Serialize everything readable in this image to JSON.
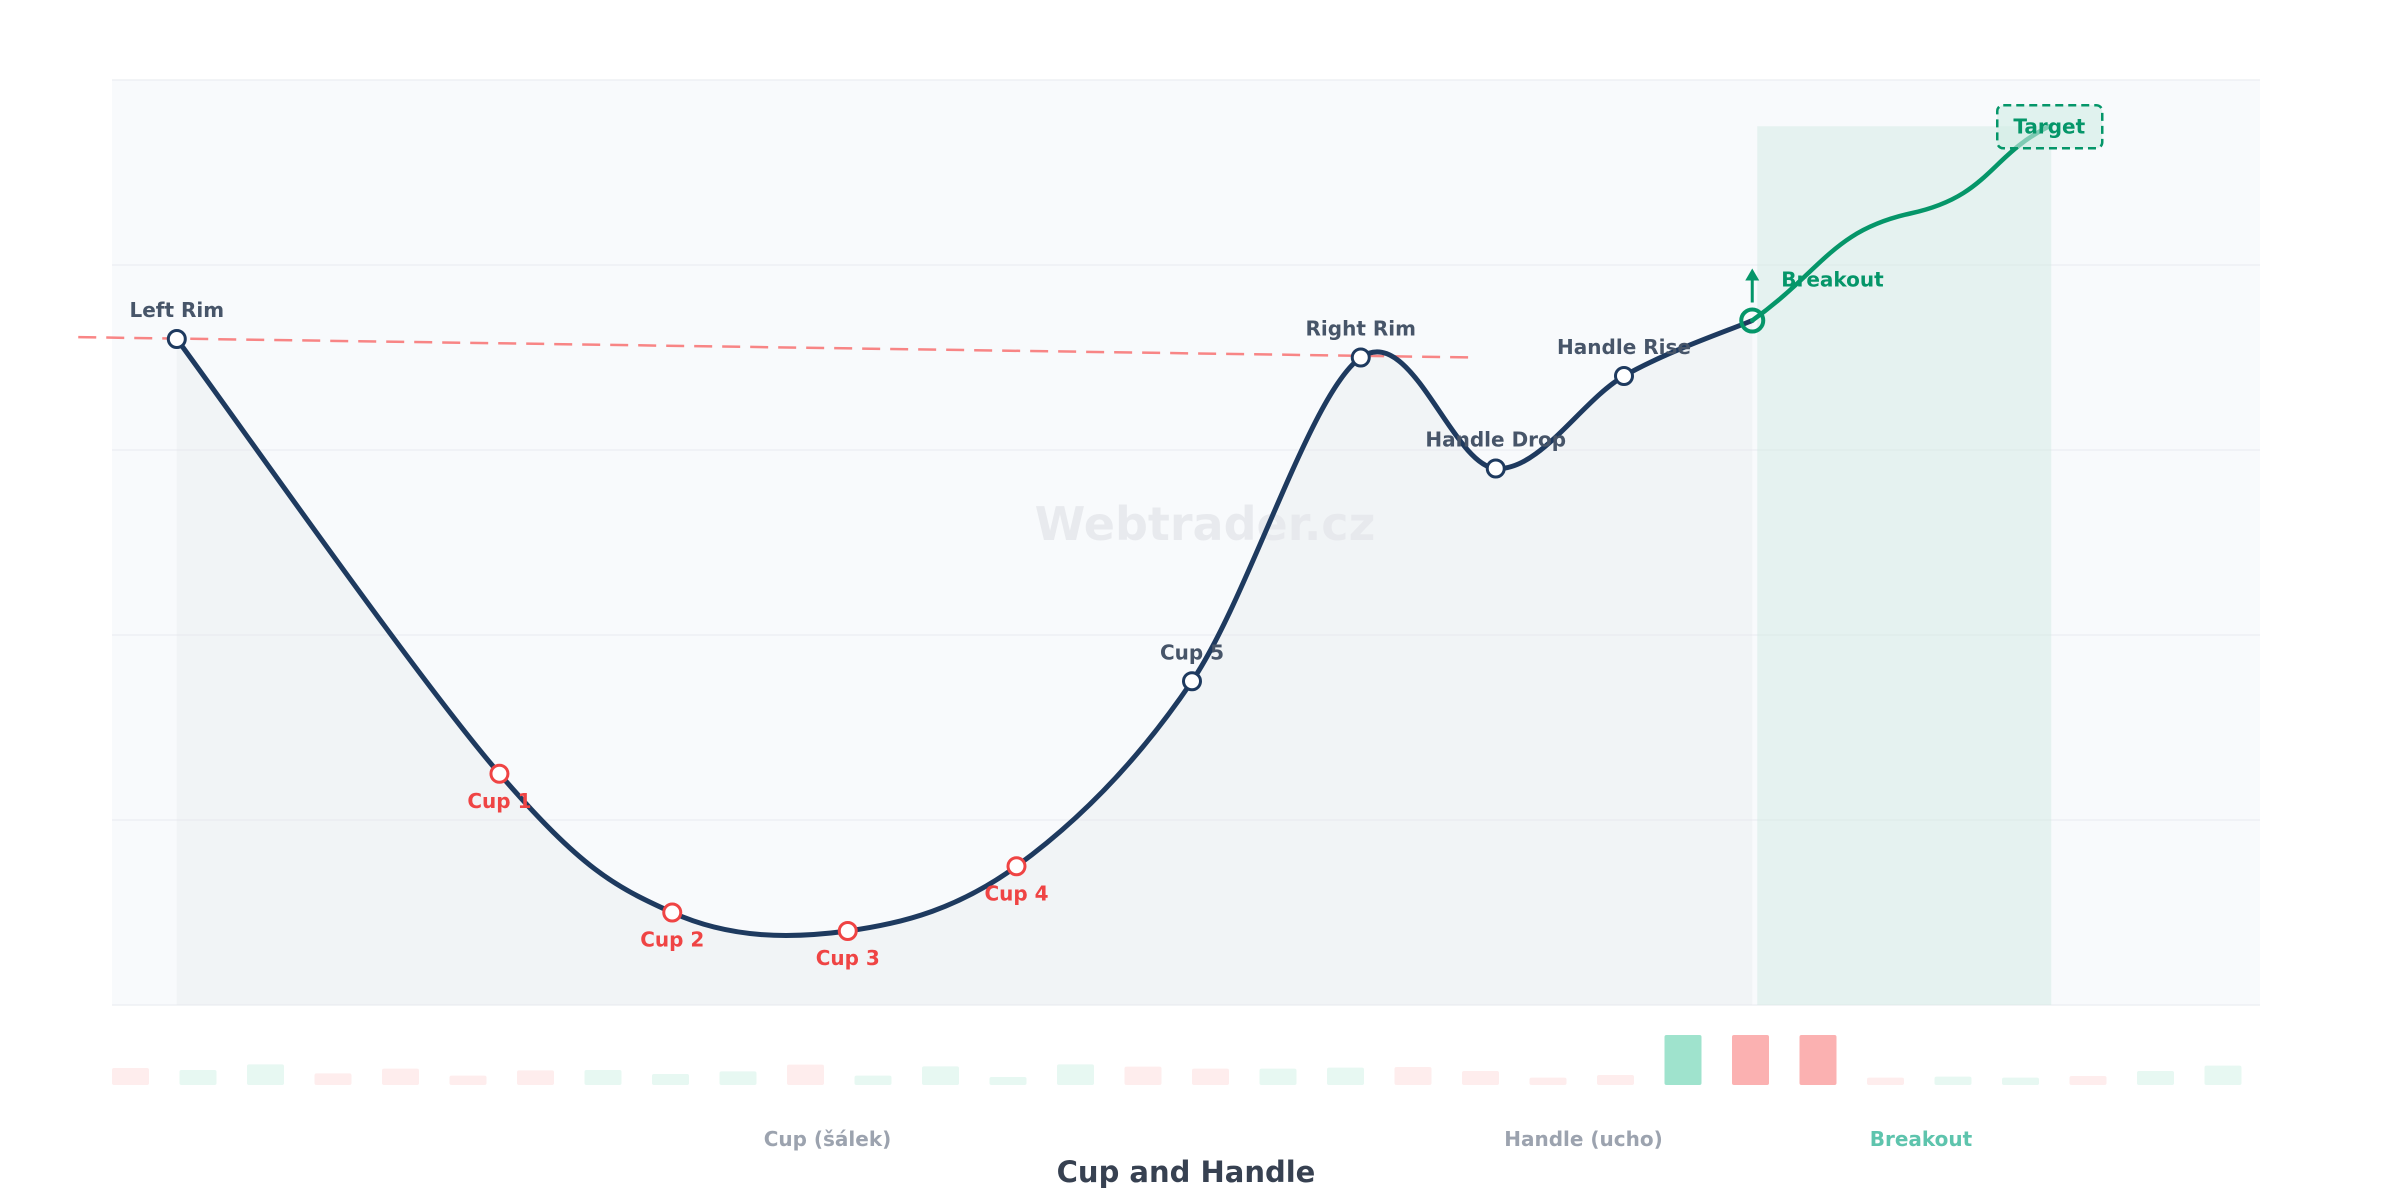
{
  "chart_data": {
    "type": "line",
    "title": "Cup and Handle",
    "watermark": "Webtrader.cz",
    "ylim": [
      0,
      100
    ],
    "xlim": [
      0,
      32
    ],
    "grid": true,
    "points": [
      {
        "label": "Left Rim",
        "x": 0.96,
        "y": 72,
        "kind": "rim"
      },
      {
        "label": "Cup 1",
        "x": 5.74,
        "y": 25,
        "kind": "cup"
      },
      {
        "label": "Cup 2",
        "x": 8.3,
        "y": 10,
        "kind": "cup"
      },
      {
        "label": "Cup 3",
        "x": 10.9,
        "y": 8,
        "kind": "cup"
      },
      {
        "label": "Cup 4",
        "x": 13.4,
        "y": 15,
        "kind": "cup"
      },
      {
        "label": "Cup 5",
        "x": 16.0,
        "y": 35,
        "kind": "rim"
      },
      {
        "label": "Right Rim",
        "x": 18.5,
        "y": 70,
        "kind": "rim"
      },
      {
        "label": "Handle Drop",
        "x": 20.5,
        "y": 58,
        "kind": "rim"
      },
      {
        "label": "Handle Rise",
        "x": 22.4,
        "y": 68,
        "kind": "rim"
      }
    ],
    "breakout": {
      "label": "Breakout",
      "x": 24.3,
      "y": 74
    },
    "target": {
      "label": "Target",
      "x": 28.7,
      "y": 95
    },
    "resistance": {
      "x": [
        -0.5,
        20.2
      ],
      "y": [
        72.2,
        70.0
      ]
    },
    "volume": {
      "values": [
        51,
        45,
        62,
        35,
        49,
        28,
        44,
        45,
        33,
        41,
        61,
        28,
        56,
        24,
        62,
        55,
        49,
        49,
        52,
        54,
        42,
        22,
        30,
        150,
        150,
        150,
        22,
        25,
        22,
        27,
        42,
        58
      ],
      "direction": [
        "down",
        "up",
        "up",
        "down",
        "down",
        "down",
        "down",
        "up",
        "up",
        "up",
        "down",
        "up",
        "up",
        "up",
        "up",
        "down",
        "down",
        "up",
        "up",
        "down",
        "down",
        "down",
        "down",
        "up",
        "down",
        "down",
        "down",
        "up",
        "up",
        "down",
        "up",
        "up"
      ],
      "highlight": [
        23,
        24,
        25
      ]
    },
    "phase_labels": [
      {
        "text": "Cup (šálek)",
        "x": 10.6,
        "color": "#9ca3af"
      },
      {
        "text": "Handle (ucho)",
        "x": 21.8,
        "color": "#9ca3af"
      },
      {
        "text": "Breakout",
        "x": 26.8,
        "color": "#5ec4ad"
      }
    ],
    "colors": {
      "line": "#1e3a5f",
      "breakout": "#059669",
      "cup_point": "#ef4444",
      "label": "#475569",
      "resistance": "#f87171",
      "volume_up": "#10b981",
      "volume_down": "#f87171"
    }
  }
}
